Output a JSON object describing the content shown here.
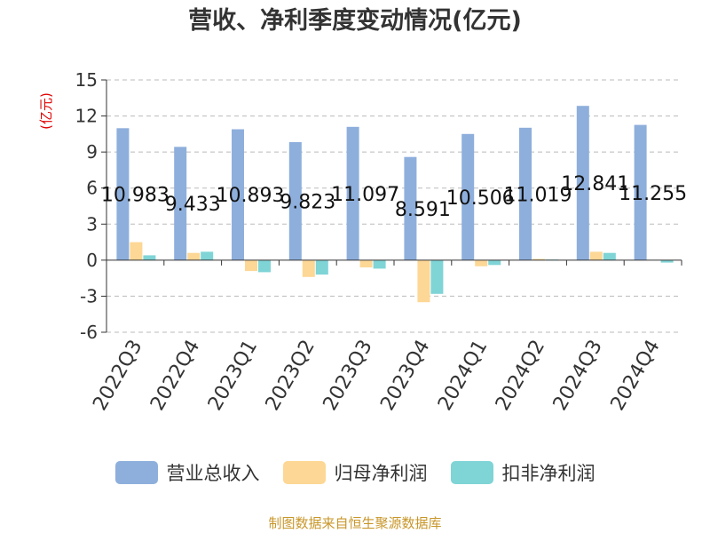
{
  "title": "营收、净利季度变动情况(亿元)",
  "footer": "制图数据来自恒生聚源数据库",
  "colors": {
    "revenue": "#8eafdc",
    "net_profit": "#fdd795",
    "deducted_profit": "#7fd4d6",
    "grid": "#bbbbbb",
    "axis": "#333333",
    "ylabel": "#e00000"
  },
  "chart_data": {
    "type": "bar",
    "title": "营收、净利季度变动情况(亿元)",
    "ylabel": "(亿元)",
    "xlabel": "",
    "ylim": [
      -6,
      15
    ],
    "yticks": [
      15,
      12,
      9,
      6,
      3,
      0,
      -3,
      -6
    ],
    "grid": true,
    "legend_position": "bottom",
    "categories": [
      "2022Q3",
      "2022Q4",
      "2023Q1",
      "2023Q2",
      "2023Q3",
      "2023Q4",
      "2024Q1",
      "2024Q2",
      "2024Q3",
      "2024Q4"
    ],
    "series": [
      {
        "name": "营业总收入",
        "color": "#8eafdc",
        "values": [
          10.983,
          9.433,
          10.893,
          9.823,
          11.097,
          8.591,
          10.506,
          11.019,
          12.841,
          11.255
        ],
        "labels": [
          "10.983",
          "9.433",
          "10.893",
          "9.823",
          "11.097",
          "8.591",
          "10.506",
          "11.019",
          "12.841",
          "11.255"
        ]
      },
      {
        "name": "归母净利润",
        "color": "#fdd795",
        "values": [
          1.5,
          0.6,
          -0.9,
          -1.4,
          -0.6,
          -3.5,
          -0.5,
          0.1,
          0.7,
          0.0
        ]
      },
      {
        "name": "扣非净利润",
        "color": "#7fd4d6",
        "values": [
          0.4,
          0.7,
          -1.0,
          -1.2,
          -0.7,
          -2.8,
          -0.4,
          0.05,
          0.6,
          -0.2
        ]
      }
    ]
  }
}
